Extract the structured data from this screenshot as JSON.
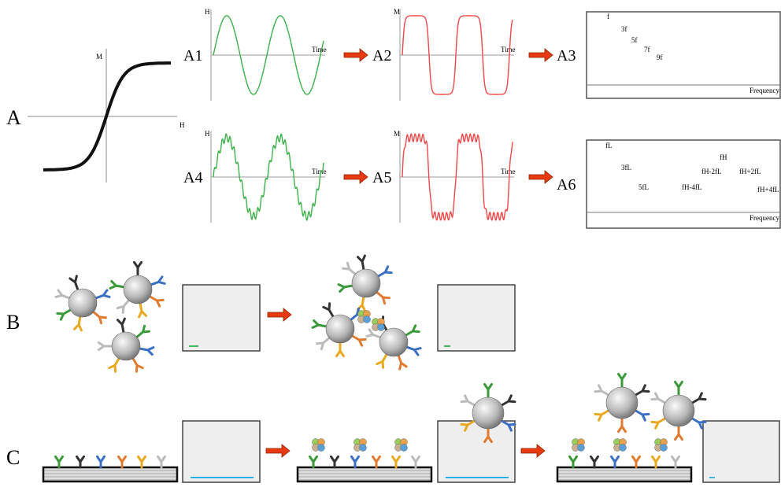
{
  "panel_labels": {
    "a": "A",
    "b": "B",
    "c": "C"
  },
  "hysteresis": {
    "y_axis": "M",
    "x_axis": "H"
  },
  "steps": [
    {
      "label": "A1",
      "y_axis": "H",
      "x_axis": "Time"
    },
    {
      "label": "A2",
      "y_axis": "M",
      "x_axis": "Time"
    },
    {
      "label": "A3",
      "x_axis": "Frequency",
      "peaks": [
        "f",
        "3f",
        "5f",
        "7f",
        "9f"
      ]
    },
    {
      "label": "A4",
      "y_axis": "H",
      "x_axis": "Time"
    },
    {
      "label": "A5",
      "y_axis": "M",
      "x_axis": "Time"
    },
    {
      "label": "A6",
      "x_axis": "Frequency",
      "peaks": [
        "fL",
        "3fL",
        "5fL",
        "fH-4fL",
        "fH-2fL",
        "fH",
        "fH+2fL",
        "fH+4fL"
      ]
    }
  ]
}
